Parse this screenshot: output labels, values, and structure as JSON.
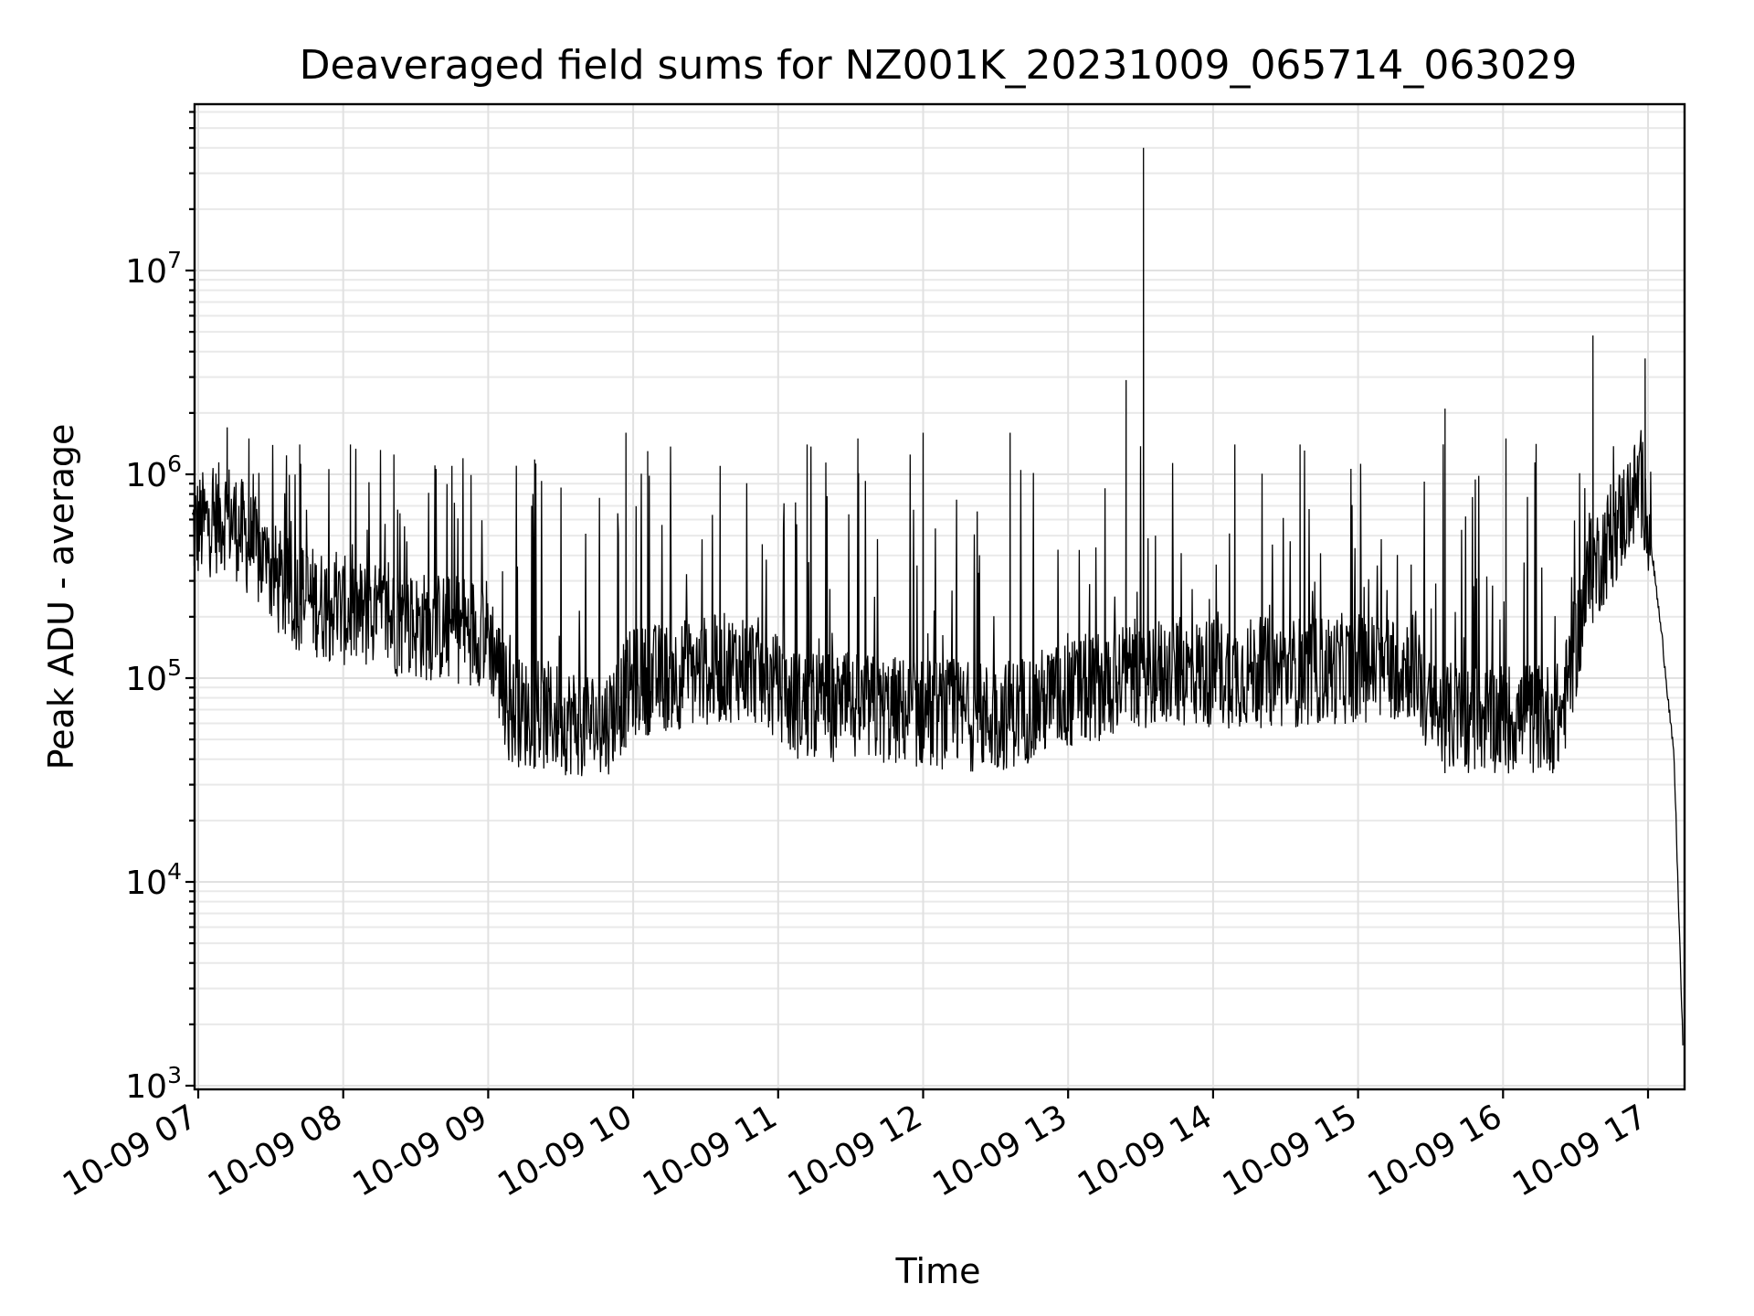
{
  "chart_data": {
    "type": "line",
    "title": "Deaveraged field sums for NZ001K_20231009_065714_063029",
    "xlabel": "Time",
    "ylabel": "Peak ADU - average",
    "yscale": "log",
    "ylim": [
      900,
      70000000
    ],
    "xlim": [
      "10-09 06:57",
      "10-09 17:15"
    ],
    "grid": true,
    "x_tick_labels": [
      "10-09 07",
      "10-09 08",
      "10-09 09",
      "10-09 10",
      "10-09 11",
      "10-09 12",
      "10-09 13",
      "10-09 14",
      "10-09 15",
      "10-09 16",
      "10-09 17"
    ],
    "x_ticks_hours": [
      7,
      8,
      9,
      10,
      11,
      12,
      13,
      14,
      15,
      16,
      17
    ],
    "y_ticks": [
      {
        "value": 1000,
        "base": "10",
        "exp": "3"
      },
      {
        "value": 10000,
        "base": "10",
        "exp": "4"
      },
      {
        "value": 100000,
        "base": "10",
        "exp": "5"
      },
      {
        "value": 1000000,
        "base": "10",
        "exp": "6"
      },
      {
        "value": 10000000,
        "base": "10",
        "exp": "7"
      }
    ],
    "series": [
      {
        "color": "#000000",
        "baseline": [
          {
            "x": 6.96,
            "y": 500000
          },
          {
            "x": 7.2,
            "y": 600000
          },
          {
            "x": 7.6,
            "y": 250000
          },
          {
            "x": 8.0,
            "y": 200000
          },
          {
            "x": 8.5,
            "y": 170000
          },
          {
            "x": 9.0,
            "y": 160000
          },
          {
            "x": 9.15,
            "y": 65000
          },
          {
            "x": 9.8,
            "y": 55000
          },
          {
            "x": 10.0,
            "y": 90000
          },
          {
            "x": 10.8,
            "y": 110000
          },
          {
            "x": 11.1,
            "y": 70000
          },
          {
            "x": 12.5,
            "y": 60000
          },
          {
            "x": 12.8,
            "y": 70000
          },
          {
            "x": 13.5,
            "y": 100000
          },
          {
            "x": 14.5,
            "y": 100000
          },
          {
            "x": 15.4,
            "y": 110000
          },
          {
            "x": 15.5,
            "y": 60000
          },
          {
            "x": 16.4,
            "y": 60000
          },
          {
            "x": 16.6,
            "y": 300000
          },
          {
            "x": 16.95,
            "y": 850000
          },
          {
            "x": 17.0,
            "y": 600000
          },
          {
            "x": 17.1,
            "y": 150000
          },
          {
            "x": 17.18,
            "y": 40000
          },
          {
            "x": 17.24,
            "y": 1600
          }
        ],
        "peaks": [
          {
            "x": 7.2,
            "y": 1700000
          },
          {
            "x": 7.35,
            "y": 1500000
          },
          {
            "x": 7.7,
            "y": 1400000
          },
          {
            "x": 8.05,
            "y": 1400000
          },
          {
            "x": 8.35,
            "y": 1250000
          },
          {
            "x": 8.75,
            "y": 1100000
          },
          {
            "x": 9.3,
            "y": 700000
          },
          {
            "x": 9.95,
            "y": 1600000
          },
          {
            "x": 10.1,
            "y": 1300000
          },
          {
            "x": 10.6,
            "y": 1100000
          },
          {
            "x": 11.2,
            "y": 1400000
          },
          {
            "x": 11.55,
            "y": 1500000
          },
          {
            "x": 12.0,
            "y": 1600000
          },
          {
            "x": 12.6,
            "y": 1600000
          },
          {
            "x": 13.4,
            "y": 2900000
          },
          {
            "x": 13.52,
            "y": 40000000
          },
          {
            "x": 14.15,
            "y": 1400000
          },
          {
            "x": 14.6,
            "y": 1400000
          },
          {
            "x": 15.6,
            "y": 2100000
          },
          {
            "x": 16.02,
            "y": 1500000
          },
          {
            "x": 16.62,
            "y": 4800000
          },
          {
            "x": 16.98,
            "y": 3700000
          }
        ]
      }
    ]
  }
}
